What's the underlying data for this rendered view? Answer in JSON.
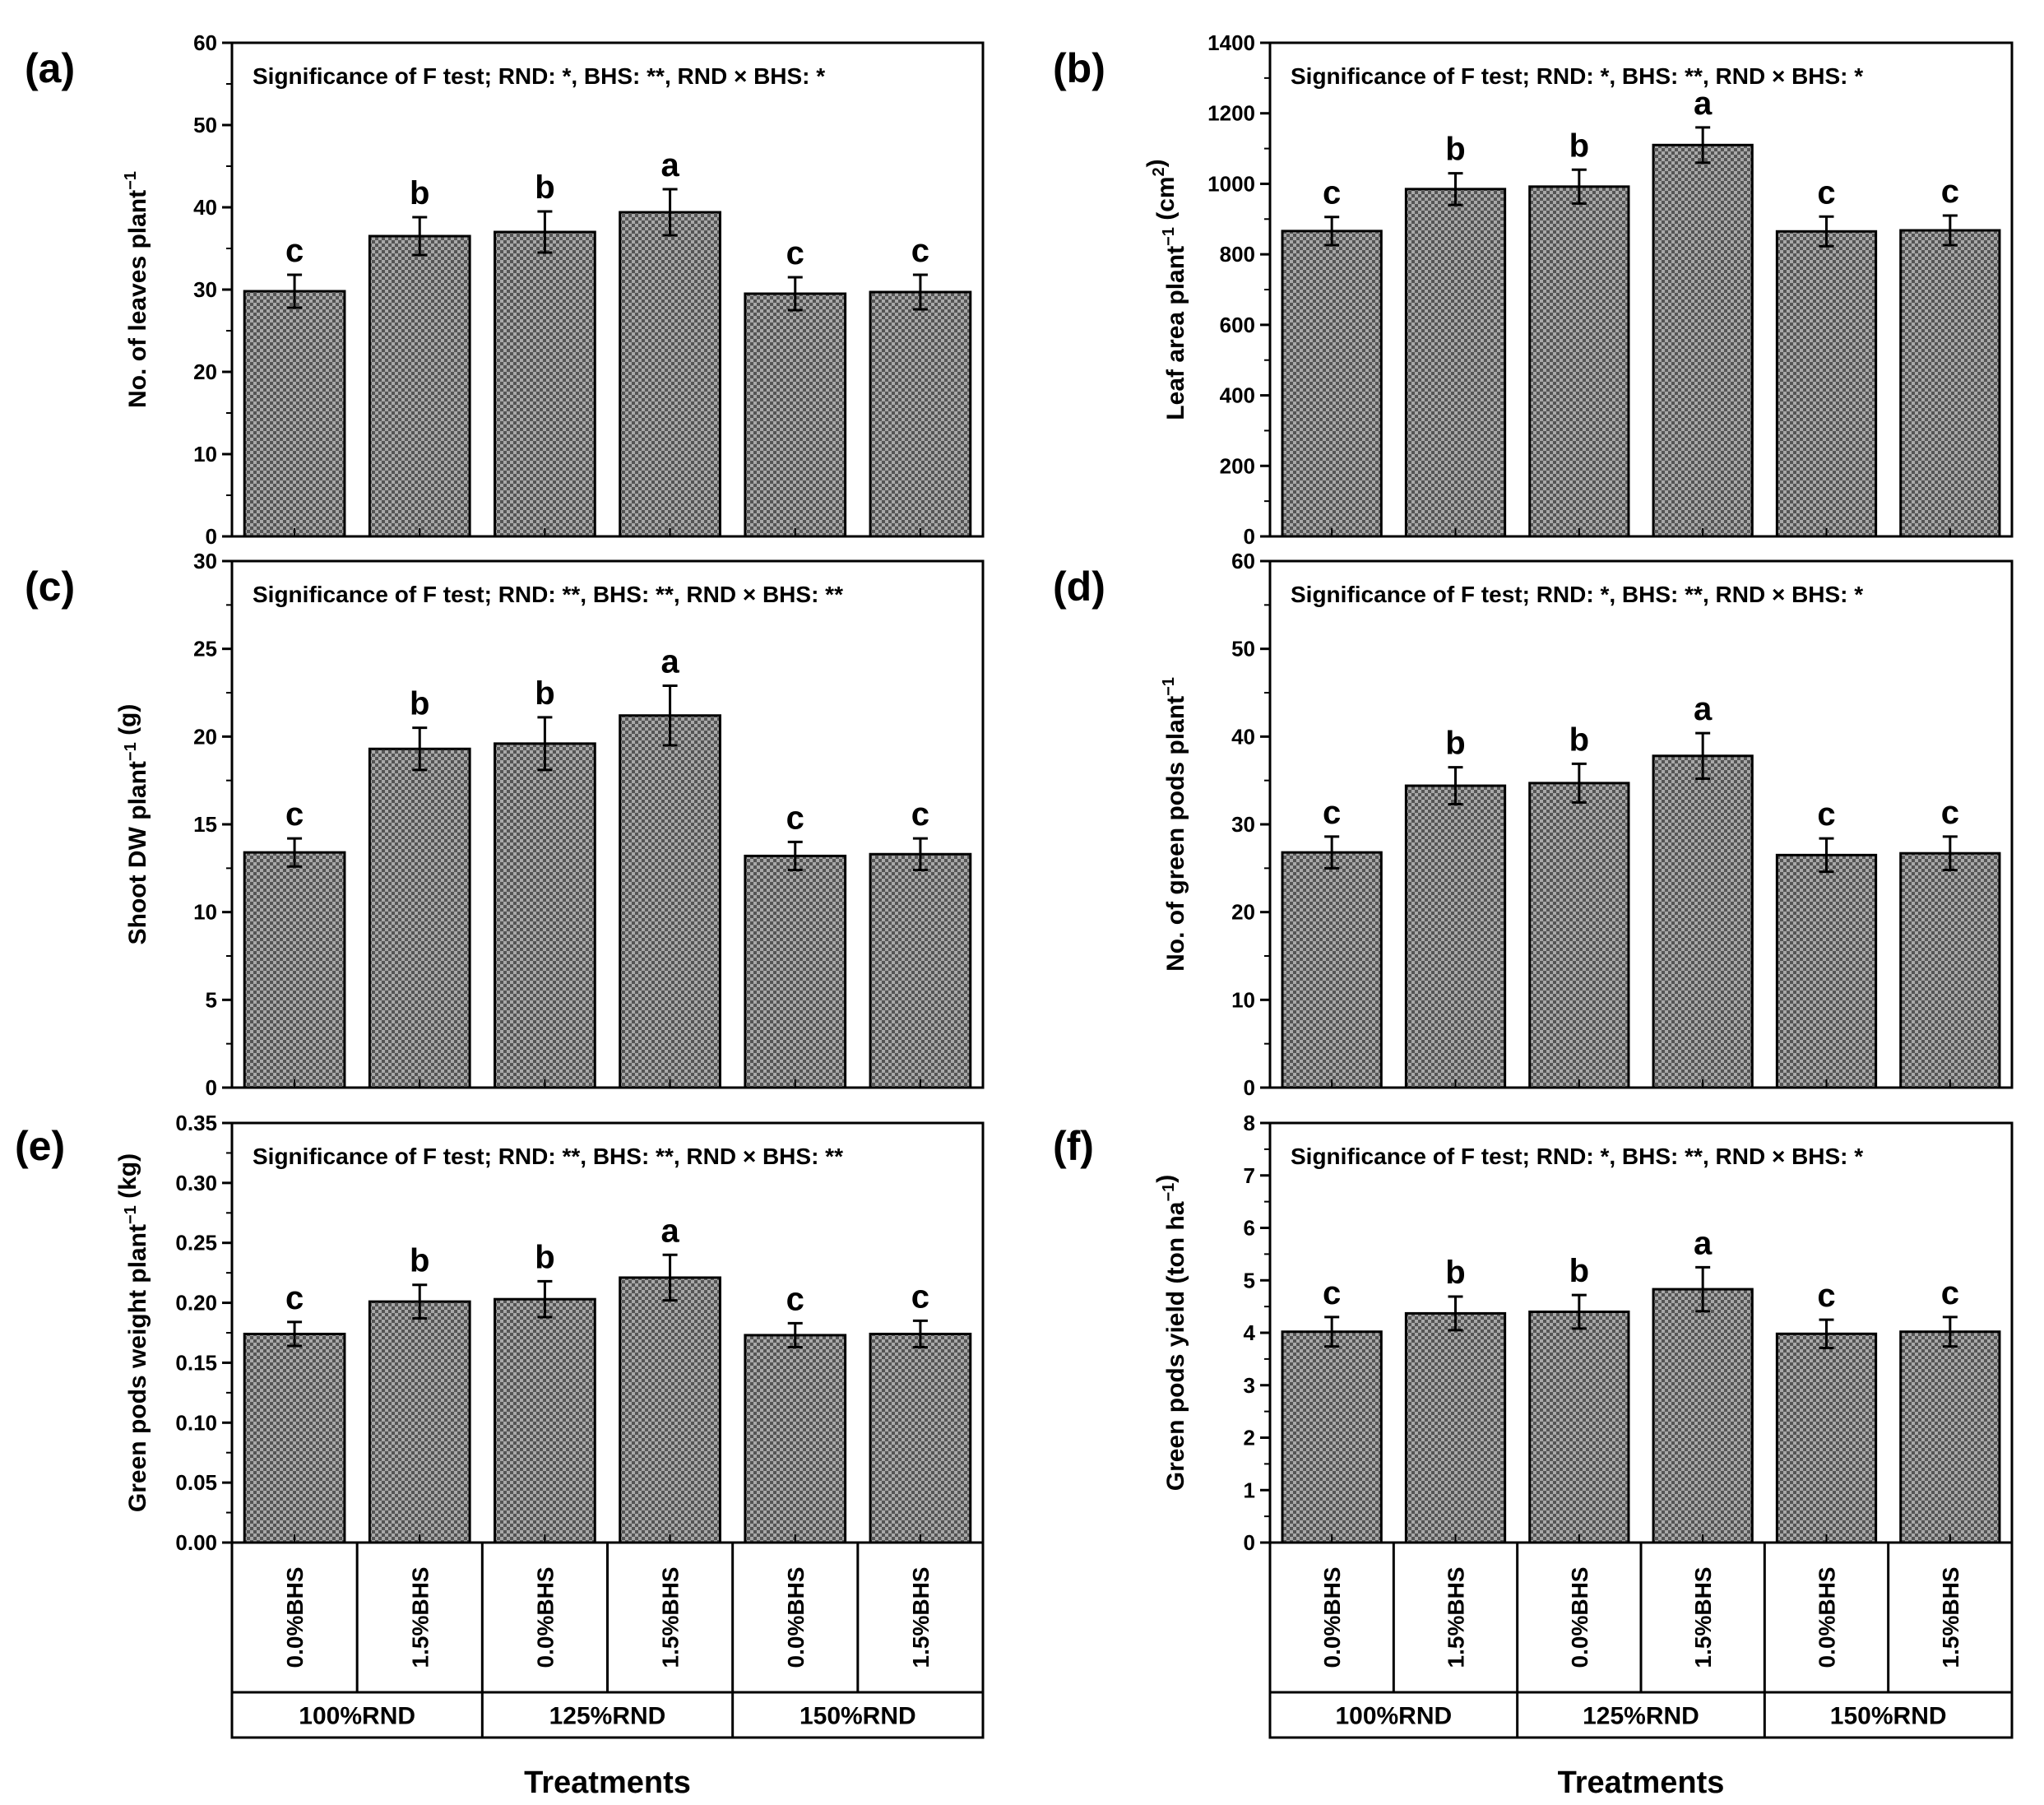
{
  "chart_data": [
    {
      "type": "bar",
      "panel": "(a)",
      "annotation": "Significance of F test; RND: *, BHS: **, RND × BHS: *",
      "ylabel": "No. of leaves plant",
      "ylabel_sup": "−1",
      "ylabel_after": "",
      "ylim": [
        0,
        60
      ],
      "yticks": [
        0,
        10,
        20,
        30,
        40,
        50,
        60
      ],
      "ytick_labels": [
        "0",
        "10",
        "20",
        "30",
        "40",
        "50",
        "60"
      ],
      "values": [
        29.8,
        36.5,
        37.0,
        39.4,
        29.5,
        29.7
      ],
      "errors": [
        2.0,
        2.3,
        2.5,
        2.8,
        2.0,
        2.1
      ],
      "letters": [
        "c",
        "b",
        "b",
        "a",
        "c",
        "c"
      ]
    },
    {
      "type": "bar",
      "panel": "(b)",
      "annotation": "Significance of F test; RND: *, BHS: **, RND × BHS: *",
      "ylabel": "Leaf area plant",
      "ylabel_sup": "−1",
      "ylabel_after": " (cm",
      "ylabel_sup2": "2",
      "ylabel_end": ")",
      "ylim": [
        0,
        1400
      ],
      "yticks": [
        0,
        200,
        400,
        600,
        800,
        1000,
        1200,
        1400
      ],
      "ytick_labels": [
        "0",
        "200",
        "400",
        "600",
        "800",
        "1000",
        "1200",
        "1400"
      ],
      "values": [
        866,
        985,
        992,
        1110,
        865,
        868
      ],
      "errors": [
        40,
        45,
        48,
        50,
        42,
        42
      ],
      "letters": [
        "c",
        "b",
        "b",
        "a",
        "c",
        "c"
      ]
    },
    {
      "type": "bar",
      "panel": "(c)",
      "annotation": "Significance of F test; RND: **, BHS: **, RND × BHS: **",
      "ylabel": "Shoot DW plant",
      "ylabel_sup": "−1",
      "ylabel_after": " (g)",
      "ylim": [
        0,
        30
      ],
      "yticks": [
        0,
        5,
        10,
        15,
        20,
        25,
        30
      ],
      "ytick_labels": [
        "0",
        "5",
        "10",
        "15",
        "20",
        "25",
        "30"
      ],
      "values": [
        13.4,
        19.3,
        19.6,
        21.2,
        13.2,
        13.3
      ],
      "errors": [
        0.8,
        1.2,
        1.5,
        1.7,
        0.8,
        0.9
      ],
      "letters": [
        "c",
        "b",
        "b",
        "a",
        "c",
        "c"
      ]
    },
    {
      "type": "bar",
      "panel": "(d)",
      "annotation": "Significance of F test; RND: *, BHS: **, RND × BHS: *",
      "ylabel": "No. of green pods plant",
      "ylabel_sup": "−1",
      "ylabel_after": "",
      "ylim": [
        0,
        60
      ],
      "yticks": [
        0,
        10,
        20,
        30,
        40,
        50,
        60
      ],
      "ytick_labels": [
        "0",
        "10",
        "20",
        "30",
        "40",
        "50",
        "60"
      ],
      "values": [
        26.8,
        34.4,
        34.7,
        37.8,
        26.5,
        26.7
      ],
      "errors": [
        1.8,
        2.1,
        2.2,
        2.6,
        1.9,
        1.9
      ],
      "letters": [
        "c",
        "b",
        "b",
        "a",
        "c",
        "c"
      ]
    },
    {
      "type": "bar",
      "panel": "(e)",
      "annotation": "Significance of F test; RND: **, BHS: **, RND × BHS: **",
      "ylabel": "Green pods weight plant",
      "ylabel_sup": "−1",
      "ylabel_after": " (kg)",
      "ylim": [
        0,
        0.35
      ],
      "yticks": [
        0,
        0.05,
        0.1,
        0.15,
        0.2,
        0.25,
        0.3,
        0.35
      ],
      "ytick_labels": [
        "0.00",
        "0.05",
        "0.10",
        "0.15",
        "0.20",
        "0.25",
        "0.30",
        "0.35"
      ],
      "values": [
        0.174,
        0.201,
        0.203,
        0.221,
        0.173,
        0.174
      ],
      "errors": [
        0.01,
        0.014,
        0.015,
        0.019,
        0.01,
        0.011
      ],
      "letters": [
        "c",
        "b",
        "b",
        "a",
        "c",
        "c"
      ],
      "categories": [
        "0.0%BHS",
        "1.5%BHS",
        "0.0%BHS",
        "1.5%BHS",
        "0.0%BHS",
        "1.5%BHS"
      ],
      "groups": [
        "100%RND",
        "125%RND",
        "150%RND"
      ],
      "xlabel": "Treatments"
    },
    {
      "type": "bar",
      "panel": "(f)",
      "annotation": "Significance of F test; RND: *, BHS: **, RND × BHS: *",
      "ylabel": "Green pods yield  (ton ha",
      "ylabel_sup": "−1",
      "ylabel_after": ")",
      "ylim": [
        0,
        8
      ],
      "yticks": [
        0,
        1,
        2,
        3,
        4,
        5,
        6,
        7,
        8
      ],
      "ytick_labels": [
        "0",
        "1",
        "2",
        "3",
        "4",
        "5",
        "6",
        "7",
        "8"
      ],
      "values": [
        4.02,
        4.37,
        4.4,
        4.83,
        3.98,
        4.02
      ],
      "errors": [
        0.28,
        0.32,
        0.32,
        0.42,
        0.27,
        0.28
      ],
      "letters": [
        "c",
        "b",
        "b",
        "a",
        "c",
        "c"
      ],
      "categories": [
        "0.0%BHS",
        "1.5%BHS",
        "0.0%BHS",
        "1.5%BHS",
        "0.0%BHS",
        "1.5%BHS"
      ],
      "groups": [
        "100%RND",
        "125%RND",
        "150%RND"
      ],
      "xlabel": "Treatments"
    }
  ],
  "style": {
    "bar_fill": "#8c8c8c",
    "bar_pattern": "checker",
    "axis_color": "#000000"
  }
}
